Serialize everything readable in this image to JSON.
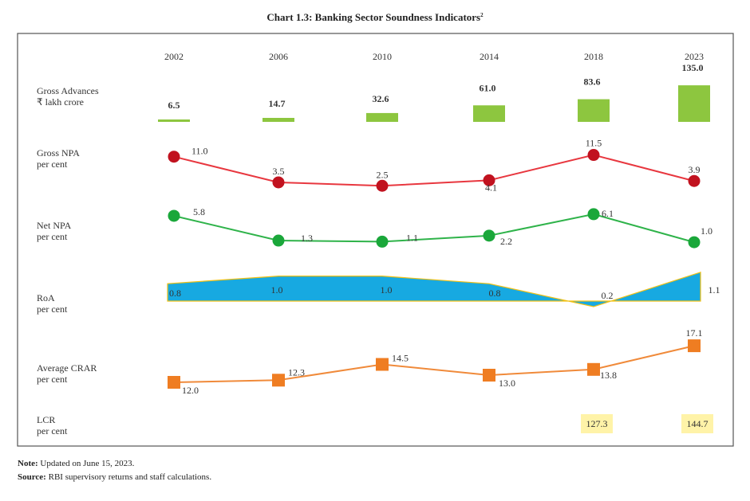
{
  "chart_data": {
    "type": "table",
    "title": "Chart 1.3: Banking Sector Soundness Indicators",
    "title_superscript": "2",
    "categories": [
      "2002",
      "2006",
      "2010",
      "2014",
      "2018",
      "2023"
    ],
    "rows": [
      {
        "label": "Gross Advances",
        "unit": "₹ lakh crore",
        "chart": "bar",
        "color": "#8dc63f",
        "values": [
          6.5,
          14.7,
          32.6,
          61.0,
          83.6,
          135.0
        ]
      },
      {
        "label": "Gross NPA",
        "unit": "per cent",
        "chart": "line",
        "color": "#e8373f",
        "marker_color": "#c1121f",
        "values": [
          11.0,
          3.5,
          2.5,
          4.1,
          11.5,
          3.9
        ]
      },
      {
        "label": "Net NPA",
        "unit": "per cent",
        "chart": "line",
        "color": "#2fb34a",
        "marker_color": "#1aa73a",
        "values": [
          5.8,
          1.3,
          1.1,
          2.2,
          6.1,
          1.0
        ]
      },
      {
        "label": "RoA",
        "unit": "per cent",
        "chart": "area",
        "color": "#17a9e1",
        "edge_color": "#f2c012",
        "values": [
          0.8,
          1.0,
          1.0,
          0.8,
          0.2,
          1.1
        ]
      },
      {
        "label": "Average CRAR",
        "unit": "per cent",
        "chart": "line",
        "color": "#f08a3a",
        "marker_color": "#ef7d22",
        "values": [
          12.0,
          12.3,
          14.5,
          13.0,
          13.8,
          17.1
        ]
      },
      {
        "label": "LCR",
        "unit": "per cent",
        "chart": "table",
        "color": "#fff3a8",
        "values": [
          null,
          null,
          null,
          null,
          127.3,
          144.7
        ]
      }
    ]
  },
  "footer": {
    "note_label": "Note:",
    "note_text": " Updated on June 15, 2023.",
    "source_label": "Source:",
    "source_text": " RBI supervisory returns and staff calculations."
  }
}
